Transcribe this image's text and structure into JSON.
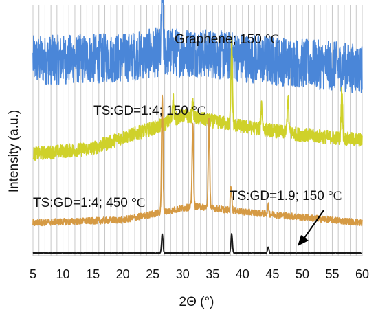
{
  "chart_data": {
    "type": "line",
    "title": "",
    "xlabel": "2Θ (°)",
    "ylabel": "Intensity (a.u.)",
    "xlim": [
      5,
      60
    ],
    "x_ticks": [
      5,
      10,
      15,
      20,
      25,
      30,
      35,
      40,
      45,
      50,
      55,
      60
    ],
    "grid": "vertical",
    "legend": "none",
    "series": [
      {
        "name": "Graphene; 150 °C",
        "color": "#4a86d8",
        "offset": 0.7,
        "noise": 0.09,
        "baseline": [
          [
            5,
            0.0
          ],
          [
            20,
            0.01
          ],
          [
            26,
            0.03
          ],
          [
            32,
            0.03
          ],
          [
            45,
            0.0
          ],
          [
            60,
            -0.03
          ]
        ],
        "peaks": [
          [
            26.6,
            0.28
          ]
        ]
      },
      {
        "name": "TS:GD=1:4; 150 °C",
        "color": "#cfd12a",
        "offset": 0.36,
        "noise": 0.025,
        "baseline": [
          [
            5,
            0.0
          ],
          [
            15,
            0.02
          ],
          [
            20,
            0.06
          ],
          [
            26,
            0.1
          ],
          [
            30,
            0.14
          ],
          [
            40,
            0.1
          ],
          [
            50,
            0.07
          ],
          [
            60,
            0.05
          ]
        ],
        "peaks": [
          [
            28.4,
            0.08
          ],
          [
            31.7,
            0.05
          ],
          [
            38.2,
            0.3
          ],
          [
            43.2,
            0.09
          ],
          [
            47.6,
            0.13
          ],
          [
            56.6,
            0.18
          ]
        ]
      },
      {
        "name": "TS:GD=1:4; 450 °C",
        "color": "#d59a44",
        "offset": 0.11,
        "noise": 0.012,
        "baseline": [
          [
            5,
            0.0
          ],
          [
            20,
            0.01
          ],
          [
            27,
            0.04
          ],
          [
            32,
            0.06
          ],
          [
            40,
            0.04
          ],
          [
            50,
            0.02
          ],
          [
            60,
            0.0
          ]
        ],
        "peaks": [
          [
            26.6,
            0.42
          ],
          [
            31.7,
            0.3
          ],
          [
            34.4,
            0.32
          ],
          [
            38.1,
            0.09
          ],
          [
            44.3,
            0.03
          ]
        ]
      },
      {
        "name": "TS:GD=1.9; 150 °C",
        "color": "#1a1a1a",
        "offset": 0.0,
        "noise": 0.002,
        "baseline": [
          [
            5,
            0.0
          ],
          [
            60,
            0.0
          ]
        ],
        "peaks": [
          [
            26.6,
            0.07
          ],
          [
            38.2,
            0.07
          ],
          [
            44.3,
            0.02
          ]
        ]
      }
    ],
    "labels": [
      {
        "text": "Graphene; 150 ",
        "unit": "°C"
      },
      {
        "text": "TS:GD=1:4; 150 ",
        "unit": "°C"
      },
      {
        "text": "TS:GD=1:4; 450 ",
        "unit": "°C"
      },
      {
        "text": "TS:GD=1.9; 150 ",
        "unit": "°C"
      }
    ]
  }
}
